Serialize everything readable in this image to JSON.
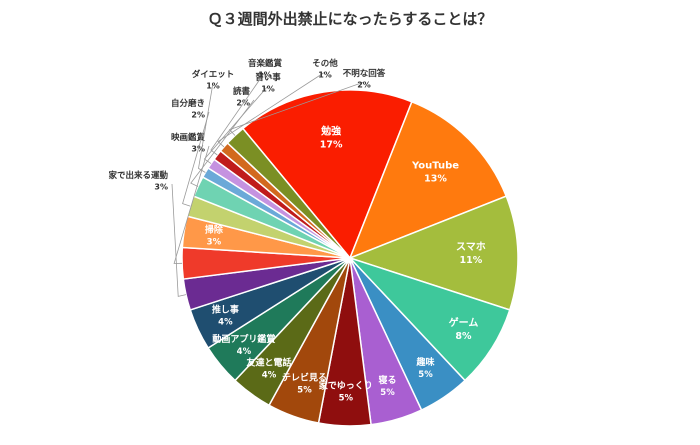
{
  "chart_data": {
    "type": "pie",
    "title": "Ｑ３週間外出禁止になったらすることは？",
    "unit": "%",
    "slices": [
      {
        "label": "勉強",
        "value": 17,
        "color": "#fa1d00"
      },
      {
        "label": "YouTube",
        "value": 13,
        "color": "#ff7a0e"
      },
      {
        "label": "スマホ",
        "value": 11,
        "color": "#a4bd3d"
      },
      {
        "label": "ゲーム",
        "value": 8,
        "color": "#3ec89b"
      },
      {
        "label": "趣味",
        "value": 5,
        "color": "#3a8fc4"
      },
      {
        "label": "寝る",
        "value": 5,
        "color": "#a95fd1"
      },
      {
        "label": "家でゆっくり",
        "value": 5,
        "color": "#8f0e0e"
      },
      {
        "label": "テレビ見る",
        "value": 5,
        "color": "#a2480c"
      },
      {
        "label": "友達と電話",
        "value": 4,
        "color": "#5b6a17"
      },
      {
        "label": "動画アプリ鑑賞",
        "value": 4,
        "color": "#1f7a5a"
      },
      {
        "label": "推し事",
        "value": 4,
        "color": "#1f4e70"
      },
      {
        "label": "家で出来る運動",
        "value": 3,
        "color": "#6b2b92"
      },
      {
        "label": "映画鑑賞",
        "value": 3,
        "color": "#ef3a2a"
      },
      {
        "label": "掃除",
        "value": 3,
        "color": "#ff9848"
      },
      {
        "label": "自分磨き",
        "value": 2,
        "color": "#c3d26e"
      },
      {
        "label": "読書",
        "value": 2,
        "color": "#6fd3b2"
      },
      {
        "label": "ダイエット",
        "value": 1,
        "color": "#6ba9d8"
      },
      {
        "label": "習い事",
        "value": 1,
        "color": "#c592e0"
      },
      {
        "label": "音楽鑑賞",
        "value": 1,
        "color": "#c01b1b"
      },
      {
        "label": "その他",
        "value": 1,
        "color": "#d2691e"
      },
      {
        "label": "不明な回答",
        "value": 2,
        "color": "#7b8f24"
      }
    ]
  }
}
